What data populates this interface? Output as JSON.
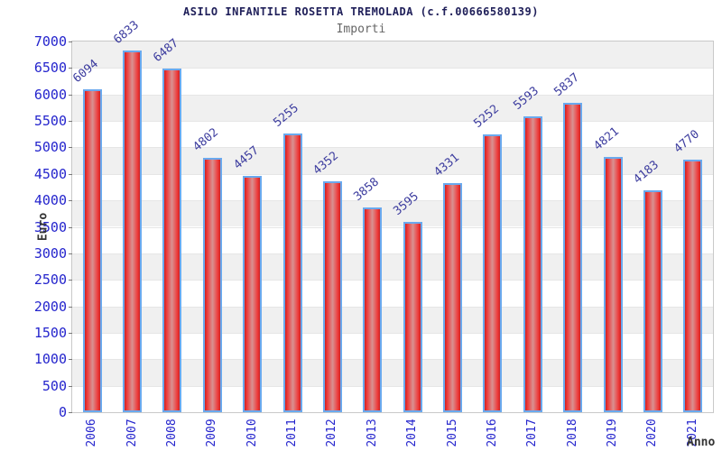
{
  "header": {
    "title": "ASILO INFANTILE ROSETTA TREMOLADA (c.f.00666580139)",
    "subtitle": "Importi"
  },
  "chart_data": {
    "type": "bar",
    "title": "ASILO INFANTILE ROSETTA TREMOLADA (c.f.00666580139)",
    "subtitle": "Importi",
    "categories": [
      "2006",
      "2007",
      "2008",
      "2009",
      "2010",
      "2011",
      "2012",
      "2013",
      "2014",
      "2015",
      "2016",
      "2017",
      "2018",
      "2019",
      "2020",
      "2021"
    ],
    "values": [
      6094,
      6833,
      6487,
      4802,
      4457,
      5255,
      4352,
      3858,
      3595,
      4331,
      5252,
      5593,
      5837,
      4821,
      4183,
      4770
    ],
    "xlabel": "Anno",
    "ylabel": "Euro",
    "ylim": [
      0,
      7000
    ],
    "ytick_step": 500,
    "grid": "horizontal-bands-alternating",
    "legend": "none",
    "colors": {
      "bar_edge_red": "#cc2222",
      "bar_mid_red": "#ee3a3a",
      "bar_center_light": "#d89292",
      "bar_border_blue": "#6aa9ee",
      "axis_tick_text": "#2525cd",
      "value_label_text": "#3b3b9e",
      "title_text": "#20205a",
      "subtitle_text": "#666666",
      "axis_title_text": "#333333",
      "band_gray": "#f0f0f0",
      "band_white": "#ffffff",
      "grid_line": "#e6e6e6",
      "plot_border": "#c9c9c9"
    }
  }
}
